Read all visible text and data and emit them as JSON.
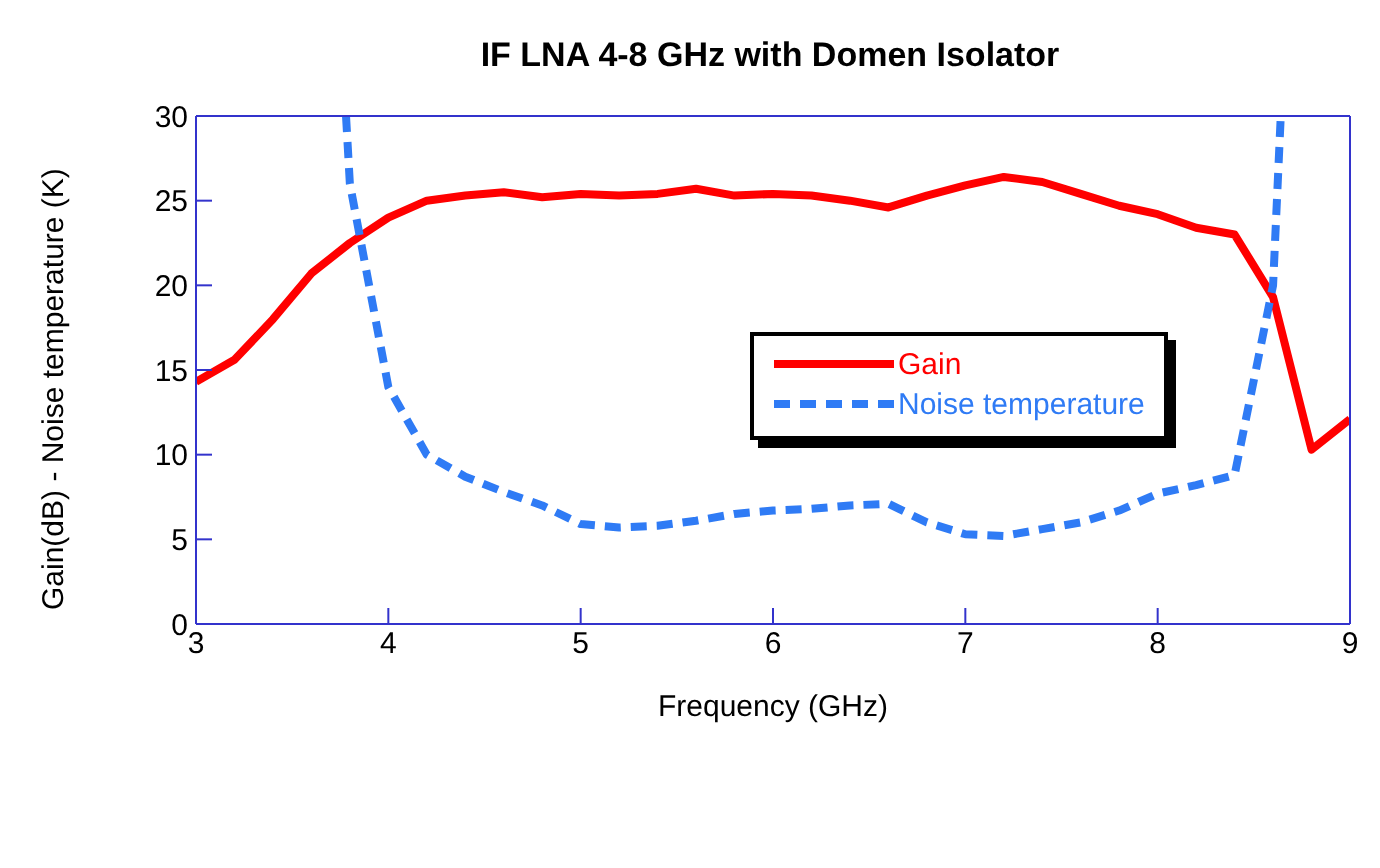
{
  "chart_data": {
    "type": "line",
    "title": "IF LNA 4-8 GHz with Domen Isolator",
    "xlabel": "Frequency (GHz)",
    "ylabel": "Gain(dB) - Noise temperature (K)",
    "xlim": [
      3,
      9
    ],
    "xticks": [
      3,
      4,
      5,
      6,
      7,
      8,
      9
    ],
    "ylim": [
      0,
      30
    ],
    "yticks": [
      0,
      5,
      10,
      15,
      20,
      25,
      30
    ],
    "legend": "right",
    "marker": "none",
    "series": [
      {
        "name": "Gain",
        "color": "#ff0000",
        "line_style": "solid",
        "x": [
          3.0,
          3.2,
          3.4,
          3.6,
          3.8,
          4.0,
          4.2,
          4.4,
          4.6,
          4.8,
          5.0,
          5.2,
          5.4,
          5.6,
          5.8,
          6.0,
          6.2,
          6.4,
          6.6,
          6.8,
          7.0,
          7.2,
          7.4,
          7.6,
          7.8,
          8.0,
          8.2,
          8.4,
          8.6,
          8.8,
          9.0
        ],
        "values": [
          14.3,
          15.6,
          18,
          20.7,
          22.5,
          24,
          25,
          25.3,
          25.5,
          25.2,
          25.4,
          25.3,
          25.4,
          25.7,
          25.3,
          25.4,
          25.3,
          25,
          24.6,
          25.3,
          25.9,
          26.4,
          26.1,
          25.4,
          24.7,
          24.2,
          23.4,
          23,
          19.3,
          10.3,
          12.1
        ]
      },
      {
        "name": "Noise temperature",
        "color": "#2f7bf5",
        "line_style": "dashed",
        "x": [
          3.78,
          3.8,
          4.0,
          4.2,
          4.4,
          4.6,
          4.8,
          5.0,
          5.2,
          5.4,
          5.6,
          5.8,
          6.0,
          6.2,
          6.4,
          6.6,
          6.8,
          7.0,
          7.2,
          7.4,
          7.6,
          7.8,
          8.0,
          8.2,
          8.4,
          8.6,
          8.64
        ],
        "values": [
          30,
          26,
          14,
          10,
          8.7,
          7.8,
          7,
          5.9,
          5.7,
          5.8,
          6.1,
          6.5,
          6.7,
          6.8,
          7,
          7.1,
          6,
          5.3,
          5.2,
          5.6,
          6,
          6.7,
          7.7,
          8.2,
          8.8,
          20,
          30
        ]
      }
    ]
  }
}
